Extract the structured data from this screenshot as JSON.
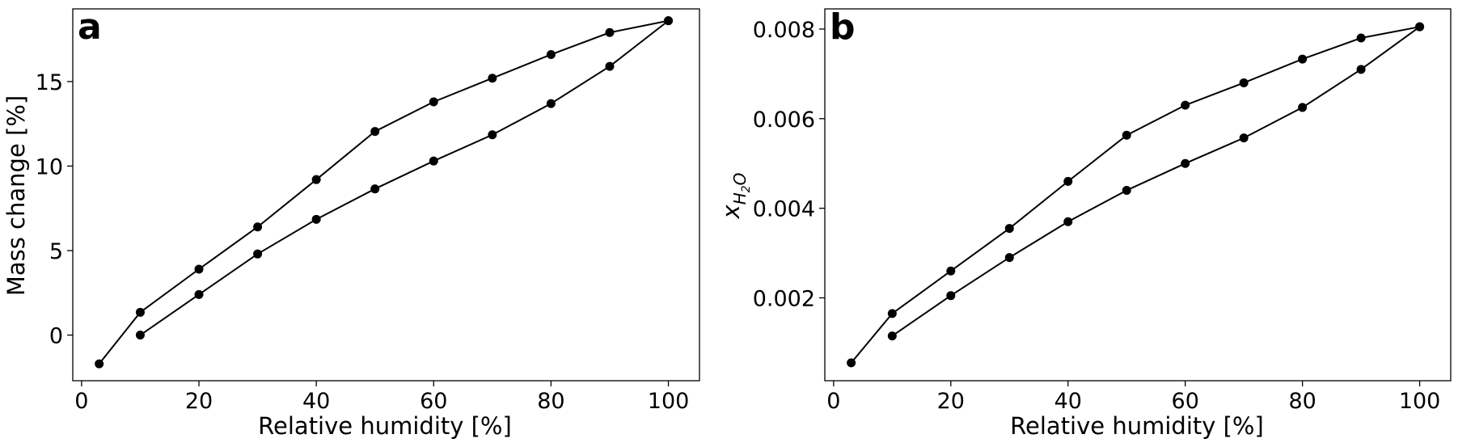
{
  "chart_data": [
    {
      "type": "line",
      "panel_label": "a",
      "xlabel": "Relative humidity [%]",
      "ylabel": "Mass change [%]",
      "xlim": [
        -1.5,
        105.3
      ],
      "ylim": [
        -2.7,
        19.3
      ],
      "xticks": [
        0,
        20,
        40,
        60,
        80,
        100
      ],
      "yticks": [
        0,
        5,
        10,
        15
      ],
      "grid": false,
      "color": "#000000",
      "series": [
        {
          "x": [
            3,
            10,
            20,
            30,
            40,
            50,
            60,
            70,
            80,
            90,
            100
          ],
          "y": [
            -1.7,
            1.35,
            3.9,
            6.4,
            9.2,
            12.05,
            13.8,
            15.2,
            16.6,
            17.9,
            18.6
          ]
        },
        {
          "x": [
            10,
            20,
            30,
            40,
            50,
            60,
            70,
            80,
            90,
            100
          ],
          "y": [
            0.0,
            2.4,
            4.8,
            6.85,
            8.65,
            10.3,
            11.85,
            13.7,
            15.9,
            18.6
          ]
        }
      ]
    },
    {
      "type": "line",
      "panel_label": "b",
      "xlabel": "Relative humidity [%]",
      "ylabel_main": "x",
      "ylabel_sub": "H",
      "ylabel_subsub": "2",
      "ylabel_subtail": "O",
      "xlim": [
        -1.5,
        105.3
      ],
      "ylim": [
        0.00015,
        0.00845
      ],
      "xticks": [
        0,
        20,
        40,
        60,
        80,
        100
      ],
      "yticks": [
        0.002,
        0.004,
        0.006,
        0.008
      ],
      "ytick_labels": [
        "0.002",
        "0.004",
        "0.006",
        "0.008"
      ],
      "grid": false,
      "color": "#000000",
      "series": [
        {
          "x": [
            3,
            10,
            20,
            30,
            40,
            50,
            60,
            70,
            80,
            90,
            100
          ],
          "y": [
            0.00055,
            0.00165,
            0.0026,
            0.00355,
            0.0046,
            0.00563,
            0.0063,
            0.0068,
            0.00733,
            0.0078,
            0.00805
          ]
        },
        {
          "x": [
            10,
            20,
            30,
            40,
            50,
            60,
            70,
            80,
            90,
            100
          ],
          "y": [
            0.00115,
            0.00205,
            0.0029,
            0.0037,
            0.0044,
            0.005,
            0.00557,
            0.00625,
            0.0071,
            0.00805
          ]
        }
      ]
    }
  ]
}
